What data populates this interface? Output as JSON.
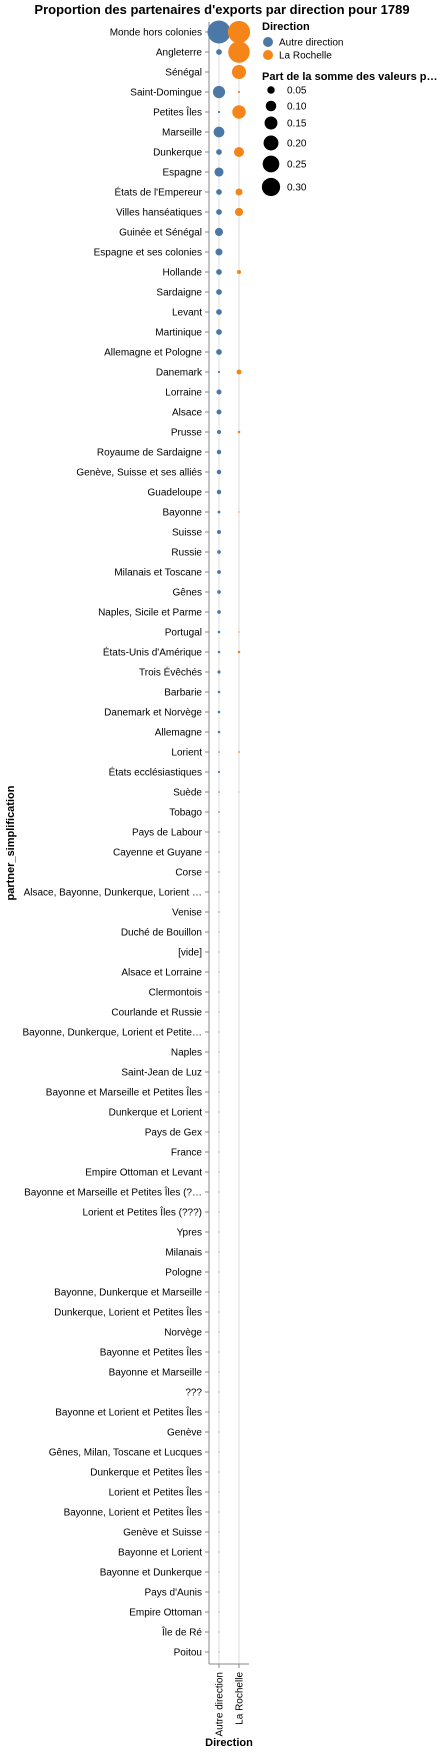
{
  "chart_data": {
    "type": "scatter",
    "title": "Proportion des partenaires d'exports par direction pour 1789",
    "xlabel": "Direction",
    "ylabel": "partner_simplification",
    "x_categories": [
      "Autre direction",
      "La Rochelle"
    ],
    "y_categories": [
      "Monde hors colonies",
      "Angleterre",
      "Sénégal",
      "Saint-Domingue",
      "Petites Îles",
      "Marseille",
      "Dunkerque",
      "Espagne",
      "États de l'Empereur",
      "Villes hanséatiques",
      "Guinée et Sénégal",
      "Espagne et ses colonies",
      "Hollande",
      "Sardaigne",
      "Levant",
      "Martinique",
      "Allemagne et Pologne",
      "Danemark",
      "Lorraine",
      "Alsace",
      "Prusse",
      "Royaume de Sardaigne",
      "Genève, Suisse et ses alliés",
      "Guadeloupe",
      "Bayonne",
      "Suisse",
      "Russie",
      "Milanais et Toscane",
      "Gênes",
      "Naples, Sicile et Parme",
      "Portugal",
      "États-Unis d'Amérique",
      "Trois Évêchés",
      "Barbarie",
      "Danemark et Norvège",
      "Allemagne",
      "Lorient",
      "États ecclésiastiques",
      "Suède",
      "Tobago",
      "Pays de Labour",
      "Cayenne et Guyane",
      "Corse",
      "Alsace, Bayonne, Dunkerque, Lorient …",
      "Venise",
      "Duché de Bouillon",
      "[vide]",
      "Alsace et Lorraine",
      "Clermontois",
      "Courlande et Russie",
      "Bayonne, Dunkerque, Lorient et Petite…",
      "Naples",
      "Saint-Jean de Luz",
      "Bayonne et Marseille et Petites Îles",
      "Dunkerque et Lorient",
      "Pays de Gex",
      "France",
      "Empire Ottoman et Levant",
      "Bayonne et Marseille et Petites Îles (?…",
      "Lorient et Petites Îles (???)",
      "Ypres",
      "Milanais",
      "Pologne",
      "Bayonne, Dunkerque et Marseille",
      "Dunkerque, Lorient et Petites Îles",
      "Norvège",
      "Bayonne et Petites Îles",
      "Bayonne et Marseille",
      "???",
      "Bayonne et Lorient et Petites Îles",
      "Genève",
      "Gênes, Milan, Toscane et Lucques",
      "Dunkerque et Petites Îles",
      "Lorient et Petites Îles",
      "Bayonne, Lorient et Petites Îles",
      "Genève et Suisse",
      "Bayonne et Lorient",
      "Bayonne et Dunkerque",
      "Pays d'Aunis",
      "Empire Ottoman",
      "Île de Ré",
      "Poitou"
    ],
    "size_domain": [
      0,
      0.32
    ],
    "grid": true,
    "legend_position": "right",
    "legend": {
      "color_title": "Direction",
      "color_entries": [
        {
          "label": "Autre direction",
          "color": "#4c78a8"
        },
        {
          "label": "La Rochelle",
          "color": "#f58518"
        }
      ],
      "size_title": "Part de la somme des valeurs p…",
      "size_entries": [
        {
          "label": "0.05",
          "value": 0.05
        },
        {
          "label": "0.10",
          "value": 0.1
        },
        {
          "label": "0.15",
          "value": 0.15
        },
        {
          "label": "0.20",
          "value": 0.2
        },
        {
          "label": "0.25",
          "value": 0.25
        },
        {
          "label": "0.30",
          "value": 0.3
        }
      ]
    },
    "series": [
      {
        "name": "Autre direction",
        "color": "#4c78a8",
        "values": [
          0.32,
          0.02,
          0.0,
          0.09,
          0.003,
          0.07,
          0.02,
          0.05,
          0.02,
          0.02,
          0.04,
          0.03,
          0.02,
          0.02,
          0.02,
          0.02,
          0.02,
          0.003,
          0.015,
          0.015,
          0.01,
          0.012,
          0.012,
          0.012,
          0.005,
          0.01,
          0.008,
          0.009,
          0.008,
          0.008,
          0.004,
          0.004,
          0.006,
          0.004,
          0.004,
          0.004,
          0.0015,
          0.003,
          0.0015,
          0.0015,
          0.001,
          0.001,
          0.001,
          0.001,
          0.001,
          0.0005,
          0.0005,
          0.0005,
          0.0005,
          0.0005,
          0.0005,
          0.0005,
          0.0005,
          0.0005,
          0.0005,
          0.0005,
          0.0005,
          0.0005,
          0.0005,
          0.0005,
          0.0005,
          0.0005,
          0.0005,
          0.0005,
          0.0005,
          0.0005,
          0.0005,
          0.0005,
          0.0005,
          0.0005,
          0.0005,
          0.0005,
          0.0005,
          0.0005,
          0.0005,
          0.0005,
          0.0005,
          0.0005,
          0.0005,
          0.0005,
          0.0005,
          0.0005
        ]
      },
      {
        "name": "La Rochelle",
        "color": "#f58518",
        "values": [
          0.3,
          0.28,
          0.12,
          0.003,
          0.11,
          0.0,
          0.06,
          0.0,
          0.03,
          0.04,
          0.0,
          0.0,
          0.01,
          0.0,
          0.0,
          0.0,
          0.0,
          0.015,
          0.0,
          0.0,
          0.004,
          0.0,
          0.0,
          0.0,
          0.001,
          0.0,
          0.0,
          0.0,
          0.0,
          0.0,
          0.001,
          0.004,
          0.0,
          0.0,
          0.0,
          0.0,
          0.002,
          0.0,
          0.0005,
          0.0,
          0.0,
          0.0,
          0.0,
          0.0,
          0.0,
          0.0,
          0.0,
          0.0,
          0.0,
          0.0,
          0.0,
          0.0,
          0.0,
          0.0,
          0.0,
          0.0,
          0.0,
          0.0,
          0.0,
          0.0,
          0.0,
          0.0,
          0.0,
          0.0,
          0.0,
          0.0,
          0.0,
          0.0,
          0.0,
          0.0,
          0.0,
          0.0,
          0.0,
          0.0,
          0.0,
          0.0,
          0.0,
          0.0,
          0.0,
          0.0,
          0.0,
          0.0
        ]
      }
    ]
  }
}
